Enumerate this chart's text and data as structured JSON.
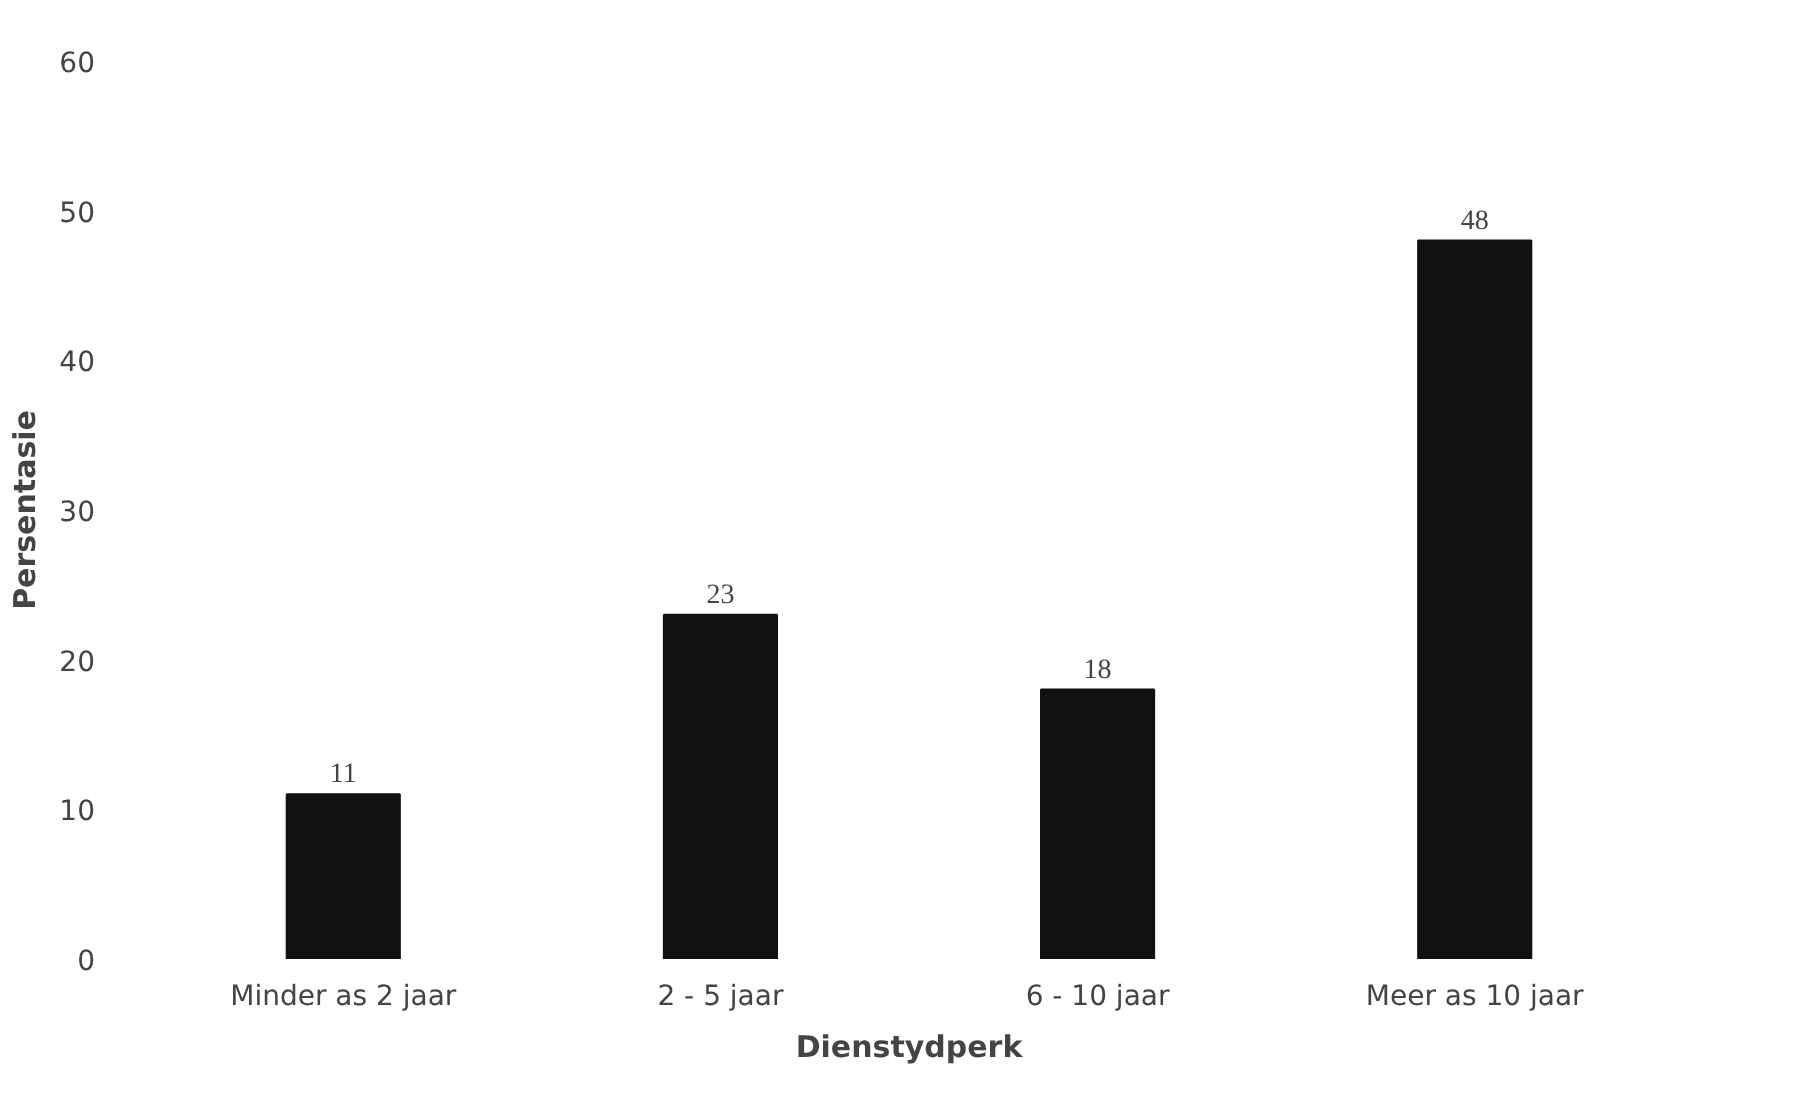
{
  "chart_data": {
    "type": "bar",
    "xlabel": "Dienstydperk",
    "ylabel": "Persentasie",
    "categories": [
      "Minder as 2 jaar",
      "2 - 5 jaar",
      "6 - 10 jaar",
      "Meer as 10 jaar"
    ],
    "values": [
      11,
      23,
      18,
      48
    ],
    "color": "#111111",
    "ylim": [
      0,
      60
    ],
    "yticks": [
      0,
      10,
      20,
      30,
      40,
      50,
      60
    ],
    "data_labels": true
  }
}
